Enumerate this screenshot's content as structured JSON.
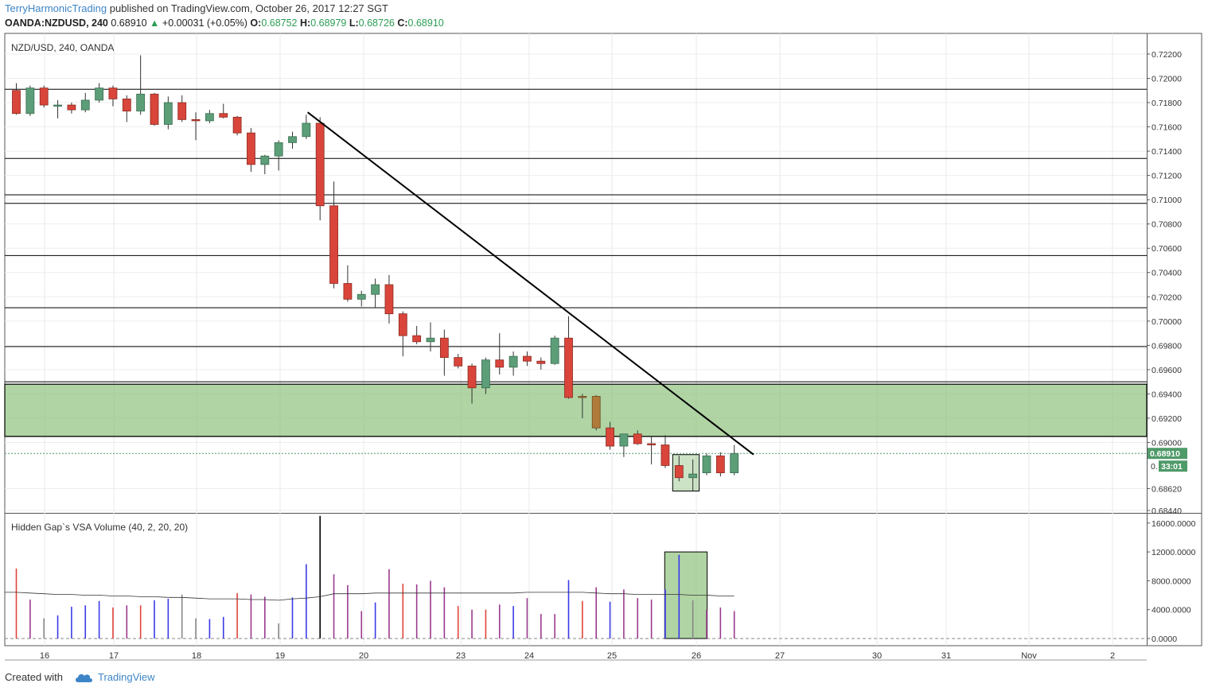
{
  "header": {
    "author": "TerryHarmonicTrading",
    "published": "published on TradingView.com, October 26, 2017 12:27 SGT",
    "symbol_line": "OANDA:NZDUSD, 240",
    "last": "0.68910",
    "change": "+0.00031 (+0.05%)",
    "o_label": "O:",
    "o": "0.68752",
    "h_label": "H:",
    "h": "0.68979",
    "l_label": "L:",
    "l": "0.68726",
    "c_label": "C:",
    "c": "0.68910"
  },
  "footer": {
    "created_with": "Created with",
    "brand": "TradingView"
  },
  "colors": {
    "bull": "#5b9e78",
    "bear": "#d9453a",
    "bull_dark": "#3d6e51",
    "bear_dark": "#8a2a22",
    "zone": "#8fc27e",
    "brown": "#b07a3a",
    "vol_red": "#e0443a",
    "vol_blue": "#3a3ae8",
    "vol_purple": "#9a3a8e",
    "vol_gray": "#888888",
    "badge": "#4f9a69"
  },
  "chart_data": {
    "type": "candlestick",
    "title": "NZD/USD, 240, OANDA",
    "price_axis_labels": [
      "0.72200",
      "0.72000",
      "0.71800",
      "0.71600",
      "0.71400",
      "0.71200",
      "0.71000",
      "0.70800",
      "0.70600",
      "0.70400",
      "0.70200",
      "0.70000",
      "0.69800",
      "0.69600",
      "0.69400",
      "0.69200",
      "0.69000",
      "0.68620",
      "0.68440"
    ],
    "price_ticks": [
      0.722,
      0.72,
      0.718,
      0.716,
      0.714,
      0.712,
      0.71,
      0.708,
      0.706,
      0.704,
      0.702,
      0.7,
      0.698,
      0.696,
      0.694,
      0.692,
      0.69,
      0.6862,
      0.6844
    ],
    "ylim": [
      0.6842,
      0.7237
    ],
    "last_price_label": "0.68910",
    "last_price": 0.6891,
    "countdown_label": "33:01",
    "x_labels": [
      "16",
      "17",
      "18",
      "19",
      "20",
      "23",
      "24",
      "25",
      "26",
      "27",
      "30",
      "31",
      "Nov",
      "2"
    ],
    "candles": [
      [
        0.719,
        0.7196,
        0.717,
        0.7171
      ],
      [
        0.7171,
        0.7194,
        0.7169,
        0.7192
      ],
      [
        0.7192,
        0.7194,
        0.7176,
        0.7178
      ],
      [
        0.7178,
        0.7182,
        0.7167,
        0.7178
      ],
      [
        0.7178,
        0.718,
        0.7171,
        0.7174
      ],
      [
        0.7174,
        0.7188,
        0.7172,
        0.7182
      ],
      [
        0.7182,
        0.7196,
        0.718,
        0.7192
      ],
      [
        0.7192,
        0.7194,
        0.7177,
        0.7183
      ],
      [
        0.7183,
        0.7186,
        0.7164,
        0.7173
      ],
      [
        0.7173,
        0.7219,
        0.717,
        0.7187
      ],
      [
        0.7187,
        0.7188,
        0.7161,
        0.7162
      ],
      [
        0.7162,
        0.7185,
        0.7158,
        0.718
      ],
      [
        0.718,
        0.7186,
        0.7164,
        0.7166
      ],
      [
        0.7166,
        0.7172,
        0.7149,
        0.7165
      ],
      [
        0.7165,
        0.7174,
        0.7163,
        0.7171
      ],
      [
        0.7171,
        0.7179,
        0.7167,
        0.7168
      ],
      [
        0.7168,
        0.7169,
        0.7153,
        0.7155
      ],
      [
        0.7155,
        0.7159,
        0.7123,
        0.7129
      ],
      [
        0.7129,
        0.7137,
        0.7121,
        0.7136
      ],
      [
        0.7136,
        0.7149,
        0.7124,
        0.7147
      ],
      [
        0.7147,
        0.7156,
        0.7142,
        0.7152
      ],
      [
        0.7152,
        0.717,
        0.715,
        0.7163
      ],
      [
        0.7163,
        0.7168,
        0.7083,
        0.7095
      ],
      [
        0.7095,
        0.7115,
        0.7027,
        0.7031
      ],
      [
        0.7031,
        0.7046,
        0.7016,
        0.7018
      ],
      [
        0.7018,
        0.7025,
        0.7012,
        0.7022
      ],
      [
        0.7022,
        0.7035,
        0.7011,
        0.703
      ],
      [
        0.703,
        0.7038,
        0.6998,
        0.7006
      ],
      [
        0.7006,
        0.7008,
        0.6971,
        0.6988
      ],
      [
        0.6988,
        0.6996,
        0.6981,
        0.6983
      ],
      [
        0.6983,
        0.6999,
        0.6975,
        0.6986
      ],
      [
        0.6986,
        0.6993,
        0.6955,
        0.697
      ],
      [
        0.697,
        0.6973,
        0.6961,
        0.6963
      ],
      [
        0.6963,
        0.6965,
        0.6932,
        0.6945
      ],
      [
        0.6945,
        0.697,
        0.694,
        0.6968
      ],
      [
        0.6968,
        0.699,
        0.6956,
        0.6962
      ],
      [
        0.6962,
        0.6975,
        0.6955,
        0.6971
      ],
      [
        0.6971,
        0.6975,
        0.6963,
        0.6967
      ],
      [
        0.6967,
        0.697,
        0.696,
        0.6965
      ],
      [
        0.6965,
        0.6988,
        0.6964,
        0.6986
      ],
      [
        0.6986,
        0.7004,
        0.6936,
        0.6937
      ],
      [
        0.6937,
        0.694,
        0.692,
        0.6938
      ],
      [
        0.6938,
        0.6939,
        0.691,
        0.6912
      ],
      [
        0.6912,
        0.6917,
        0.6894,
        0.6897
      ],
      [
        0.6897,
        0.6907,
        0.6888,
        0.6907
      ],
      [
        0.6907,
        0.691,
        0.6898,
        0.6899
      ],
      [
        0.6899,
        0.6905,
        0.6882,
        0.6898
      ],
      [
        0.6898,
        0.6906,
        0.6879,
        0.6881
      ],
      [
        0.6881,
        0.6889,
        0.6868,
        0.6871
      ],
      [
        0.6871,
        0.6886,
        0.686,
        0.6874
      ],
      [
        0.6875,
        0.6891,
        0.6873,
        0.6889
      ],
      [
        0.6889,
        0.6892,
        0.6872,
        0.6875
      ],
      [
        0.6875,
        0.6898,
        0.6873,
        0.6891
      ]
    ],
    "candle_colors": {
      "41": "brown",
      "42": "brown"
    },
    "horizontal_lines": [
      0.7191,
      0.7134,
      0.7104,
      0.7097,
      0.7054,
      0.7011,
      0.6979,
      0.695,
      0.6905
    ],
    "zone": [
      0.6948,
      0.6905
    ],
    "trendline": [
      [
        21.1,
        0.7172
      ],
      [
        53.4,
        0.689
      ]
    ],
    "box": {
      "from": 48,
      "to": 49,
      "top": 0.689,
      "bottom": 0.686
    },
    "volume": {
      "title": "Hidden Gap`s VSA Volume (40, 2, 20, 20)",
      "axis_labels": [
        "16000.0000",
        "12000.0000",
        "8000.0000",
        "4000.0000",
        "0.0000"
      ],
      "axis_values": [
        16000,
        12000,
        8000,
        4000,
        0
      ],
      "ylim": [
        0,
        17300
      ],
      "values": [
        9700,
        5400,
        2800,
        3200,
        4400,
        4600,
        5200,
        4300,
        4600,
        4600,
        5300,
        5500,
        6100,
        2800,
        2700,
        3000,
        6300,
        6100,
        5800,
        2100,
        5700,
        10300,
        17000,
        8900,
        7400,
        3800,
        5000,
        9600,
        7600,
        7500,
        8000,
        7100,
        4500,
        4000,
        4000,
        4700,
        4500,
        5600,
        3400,
        3400,
        8100,
        5200,
        7100,
        5100,
        6800,
        5600,
        5400,
        6800,
        11600,
        5300,
        4000,
        4300,
        3800
      ],
      "colors": [
        "red",
        "purple",
        "gray",
        "blue",
        "blue",
        "blue",
        "blue",
        "red",
        "purple",
        "red",
        "blue",
        "blue",
        "gray",
        "gray",
        "blue",
        "blue",
        "red",
        "purple",
        "purple",
        "gray",
        "blue",
        "blue",
        "gray",
        "purple",
        "purple",
        "purple",
        "blue",
        "purple",
        "red",
        "purple",
        "purple",
        "purple",
        "red",
        "purple",
        "red",
        "purple",
        "blue",
        "purple",
        "purple",
        "purple",
        "blue",
        "red",
        "purple",
        "blue",
        "purple",
        "purple",
        "purple",
        "blue",
        "blue",
        "gray",
        "purple",
        "purple",
        "purple"
      ],
      "ma": [
        6400,
        6300,
        6200,
        6100,
        6100,
        6000,
        6000,
        5900,
        5900,
        5800,
        5800,
        5700,
        5700,
        5600,
        5500,
        5500,
        5500,
        5400,
        5400,
        5300,
        5500,
        5600,
        5800,
        6200,
        6200,
        6200,
        6300,
        6300,
        6300,
        6300,
        6300,
        6300,
        6300,
        6300,
        6300,
        6300,
        6300,
        6400,
        6400,
        6400,
        6400,
        6400,
        6300,
        6200,
        6200,
        6100,
        6100,
        6100,
        6100,
        6000,
        6000,
        5900,
        5900
      ]
    }
  }
}
